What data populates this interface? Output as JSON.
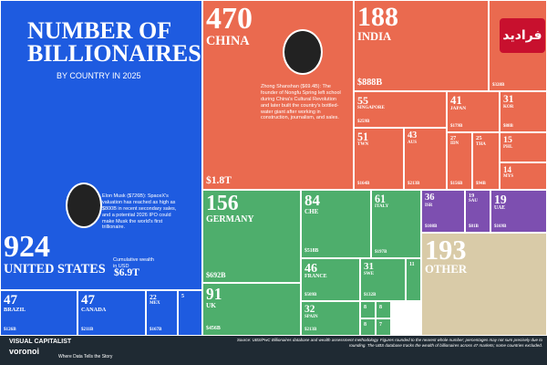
{
  "header": {
    "title": "NUMBER OF BILLIONAIRES",
    "subtitle": "BY COUNTRY IN 2025"
  },
  "tiles": [
    {
      "count": 924,
      "country": "UNITED STATES",
      "wealth": "$6.9T"
    },
    {
      "count": 47,
      "country": "BRAZIL",
      "wealth": "$126B"
    },
    {
      "count": 47,
      "country": "CANADA",
      "wealth": "$211B"
    },
    {
      "count": 22,
      "country": "MEX",
      "wealth": "$167B"
    },
    {
      "count": 5
    },
    {
      "count": 470,
      "country": "CHINA",
      "wealth": "$1.8T"
    },
    {
      "count": 188,
      "country": "INDIA",
      "wealth": "$888B"
    },
    {
      "wealth": "$328B"
    },
    {
      "count": 55,
      "country": "SINGAPORE",
      "wealth": "$259B"
    },
    {
      "count": 41,
      "country": "JAPAN",
      "wealth": "$179B"
    },
    {
      "count": 31,
      "country": "KOR",
      "wealth": "$88B"
    },
    {
      "count": 51,
      "country": "TWN",
      "wealth": "$164B"
    },
    {
      "count": 43,
      "country": "AUS",
      "wealth": "$213B"
    },
    {
      "count": 27,
      "country": "IDN",
      "wealth": "$156B"
    },
    {
      "count": 25,
      "country": "THA",
      "wealth": "$94B"
    },
    {
      "count": 15,
      "country": "PHL"
    },
    {
      "count": 14,
      "country": "MYS"
    },
    {
      "count": 156,
      "country": "GERMANY",
      "wealth": "$692B"
    },
    {
      "count": 91,
      "country": "UK",
      "wealth": "$456B"
    },
    {
      "count": 84,
      "country": "CHE",
      "wealth": "$518B"
    },
    {
      "count": 61,
      "country": "ITALY",
      "wealth": "$197B"
    },
    {
      "count": 46,
      "country": "FRANCE",
      "wealth": "$509B"
    },
    {
      "count": 31,
      "country": "SWE",
      "wealth": "$132B"
    },
    {
      "count": 11
    },
    {
      "count": 32,
      "country": "SPAIN",
      "wealth": "$213B"
    },
    {
      "count": 8
    },
    {
      "count": 8
    },
    {
      "count": 8
    },
    {
      "count": 7
    },
    {
      "count": 36,
      "country": "ISR",
      "wealth": "$108B"
    },
    {
      "count": 19,
      "country": "SAU",
      "wealth": "$81B"
    },
    {
      "count": 19,
      "country": "UAE",
      "wealth": "$169B"
    },
    {
      "count": 193,
      "country": "OTHER"
    }
  ],
  "callouts": {
    "musk": "Elon Musk ($726B): SpaceX's valuation has reached as high as $800B in recent secondary sales, and a potential 2026 IPO could make Musk the world's first trillionaire.",
    "zhong": "Zhong Shanshan ($69.4B): The founder of Nongfu Spring left school during China's Cultural Revolution and later built the country's bottled-water giant after working in construction, journalism, and sales.",
    "cumulative": "Cumulative wealth in USD"
  },
  "footer": {
    "brand": "VISUAL CAPITALIST",
    "app": "voronoi",
    "tagline": "Where Data Tells the Story",
    "source": "Source: UBS/PwC Billionaires database and wealth assessment methodology. Figures rounded to the nearest whole number; percentages may not sum precisely due to rounding. The UBS database tracks the wealth of billionaires across 47 markets; some countries excluded."
  },
  "watermark": "فرادید"
}
